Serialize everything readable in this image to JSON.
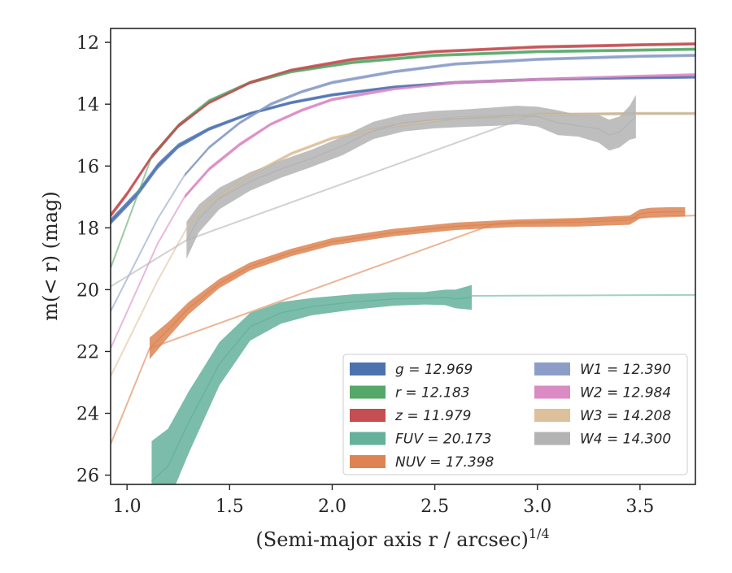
{
  "chart_data": {
    "type": "line",
    "title": "",
    "xlabel": "(Semi-major axis r / arcsec)",
    "xlabel_superscript": "1/4",
    "ylabel": "m(< r) (mag)",
    "xlim": [
      0.92,
      3.77
    ],
    "ylim": [
      26.3,
      11.55
    ],
    "y_inverted": true,
    "grid": false,
    "legend_position": "lower-right",
    "x_ticks": [
      "1.0",
      "1.5",
      "2.0",
      "2.5",
      "3.0",
      "3.5"
    ],
    "y_ticks": [
      "12",
      "14",
      "16",
      "18",
      "20",
      "22",
      "24",
      "26"
    ],
    "series": [
      {
        "name": "g = 12.969",
        "color": "#4c72b0",
        "x": [
          0.92,
          1.05,
          1.15,
          1.25,
          1.4,
          1.6,
          1.8,
          2.0,
          2.3,
          2.6,
          3.0,
          3.4,
          3.77
        ],
        "y": [
          17.8,
          16.9,
          16.0,
          15.35,
          14.8,
          14.3,
          13.95,
          13.7,
          13.45,
          13.3,
          13.2,
          13.15,
          13.12
        ],
        "err": [
          0.1,
          0.1,
          0.1,
          0.08,
          0.06,
          0.05,
          0.05,
          0.05,
          0.05,
          0.05,
          0.05,
          0.05,
          0.05
        ],
        "extrap_x": [],
        "extrap_y": []
      },
      {
        "name": "r = 12.183",
        "color": "#55a868",
        "x": [
          1.12,
          1.25,
          1.4,
          1.6,
          1.8,
          2.1,
          2.5,
          3.0,
          3.5,
          3.77
        ],
        "y": [
          15.7,
          14.7,
          13.9,
          13.3,
          12.95,
          12.65,
          12.42,
          12.3,
          12.25,
          12.22
        ],
        "err": [
          0.08,
          0.07,
          0.06,
          0.05,
          0.05,
          0.05,
          0.05,
          0.05,
          0.05,
          0.05
        ],
        "extrap_x": [
          0.92,
          1.12
        ],
        "extrap_y": [
          19.3,
          15.7
        ]
      },
      {
        "name": "z = 11.979",
        "color": "#c44e52",
        "x": [
          0.92,
          1.0,
          1.12,
          1.25,
          1.4,
          1.6,
          1.8,
          2.1,
          2.5,
          3.0,
          3.5,
          3.77
        ],
        "y": [
          17.6,
          16.9,
          15.7,
          14.7,
          13.95,
          13.3,
          12.9,
          12.55,
          12.3,
          12.15,
          12.08,
          12.05
        ],
        "err": [
          0.08,
          0.08,
          0.07,
          0.06,
          0.05,
          0.05,
          0.05,
          0.05,
          0.05,
          0.05,
          0.05,
          0.05
        ],
        "extrap_x": [],
        "extrap_y": []
      },
      {
        "name": "FUV = 20.173",
        "color": "#64b29b",
        "x": [
          1.12,
          1.2,
          1.3,
          1.45,
          1.6,
          1.75,
          1.9,
          2.1,
          2.3,
          2.45,
          2.55,
          2.6,
          2.68
        ],
        "y": [
          26.2,
          25.7,
          24.3,
          22.4,
          21.2,
          20.75,
          20.55,
          20.4,
          20.3,
          20.28,
          20.25,
          20.3,
          20.25
        ],
        "err": [
          1.3,
          1.2,
          1.0,
          0.7,
          0.45,
          0.35,
          0.28,
          0.25,
          0.22,
          0.2,
          0.25,
          0.3,
          0.4
        ],
        "extrap_x": [
          2.68,
          3.77
        ],
        "extrap_y": [
          20.2,
          20.17
        ]
      },
      {
        "name": "NUV = 17.398",
        "color": "#dd8452",
        "x": [
          1.11,
          1.2,
          1.3,
          1.45,
          1.6,
          1.8,
          2.0,
          2.3,
          2.6,
          2.9,
          3.2,
          3.45,
          3.5,
          3.55,
          3.65,
          3.72
        ],
        "y": [
          21.9,
          21.3,
          20.6,
          19.8,
          19.25,
          18.8,
          18.45,
          18.15,
          17.95,
          17.85,
          17.82,
          17.75,
          17.55,
          17.5,
          17.48,
          17.48
        ],
        "err": [
          0.35,
          0.25,
          0.2,
          0.15,
          0.13,
          0.12,
          0.12,
          0.12,
          0.12,
          0.12,
          0.14,
          0.15,
          0.15,
          0.15,
          0.15,
          0.15
        ],
        "extrap_x": [
          0.92,
          1.11,
          2.8,
          3.77
        ],
        "extrap_y": [
          25.0,
          21.9,
          17.85,
          17.6
        ]
      },
      {
        "name": "W1 = 12.390",
        "color": "#8c9ec8",
        "x": [
          1.28,
          1.4,
          1.55,
          1.7,
          1.85,
          2.0,
          2.3,
          2.6,
          3.0,
          3.5,
          3.77
        ],
        "y": [
          16.3,
          15.4,
          14.6,
          14.0,
          13.6,
          13.3,
          12.95,
          12.7,
          12.55,
          12.45,
          12.42
        ],
        "err": [
          0.05,
          0.05,
          0.05,
          0.05,
          0.05,
          0.05,
          0.05,
          0.05,
          0.05,
          0.05,
          0.05
        ],
        "extrap_x": [
          0.92,
          1.15,
          1.28
        ],
        "extrap_y": [
          20.7,
          17.7,
          16.3
        ]
      },
      {
        "name": "W2 = 12.984",
        "color": "#da8bc3",
        "x": [
          1.28,
          1.4,
          1.55,
          1.7,
          1.85,
          2.0,
          2.3,
          2.6,
          3.0,
          3.5,
          3.77
        ],
        "y": [
          17.0,
          16.1,
          15.3,
          14.65,
          14.2,
          13.85,
          13.5,
          13.3,
          13.2,
          13.1,
          13.05
        ],
        "err": [
          0.06,
          0.06,
          0.06,
          0.05,
          0.05,
          0.05,
          0.05,
          0.05,
          0.05,
          0.05,
          0.05
        ],
        "extrap_x": [
          0.92,
          1.15,
          1.28
        ],
        "extrap_y": [
          21.9,
          18.5,
          17.0
        ]
      },
      {
        "name": "W3 = 14.208",
        "color": "#ddc19a",
        "x": [
          1.3,
          1.4,
          1.6,
          1.8,
          2.0,
          2.3,
          2.6,
          3.0,
          3.5,
          3.77
        ],
        "y": [
          17.9,
          17.2,
          16.3,
          15.6,
          15.1,
          14.7,
          14.45,
          14.35,
          14.3,
          14.3
        ],
        "err": [
          0.06,
          0.06,
          0.05,
          0.05,
          0.05,
          0.05,
          0.05,
          0.05,
          0.05,
          0.05
        ],
        "extrap_x": [
          0.92,
          1.15,
          1.3
        ],
        "extrap_y": [
          22.8,
          19.7,
          17.9
        ]
      },
      {
        "name": "W4 = 14.300",
        "color": "#b3b3b3",
        "x": [
          1.29,
          1.35,
          1.45,
          1.6,
          1.75,
          1.9,
          2.05,
          2.2,
          2.35,
          2.5,
          2.65,
          2.8,
          2.9,
          3.0,
          3.1,
          3.2,
          3.3,
          3.35,
          3.4,
          3.45,
          3.48
        ],
        "y": [
          18.4,
          17.7,
          17.05,
          16.5,
          16.1,
          15.75,
          15.35,
          14.85,
          14.6,
          14.5,
          14.45,
          14.4,
          14.35,
          14.4,
          14.6,
          14.7,
          14.8,
          15.0,
          14.9,
          14.6,
          14.4
        ],
        "err": [
          0.6,
          0.45,
          0.35,
          0.3,
          0.28,
          0.28,
          0.3,
          0.28,
          0.28,
          0.28,
          0.28,
          0.3,
          0.3,
          0.32,
          0.4,
          0.35,
          0.45,
          0.5,
          0.5,
          0.55,
          0.7
        ],
        "extrap_x": [
          0.92,
          1.29,
          3.0,
          3.77
        ],
        "extrap_y": [
          19.9,
          18.4,
          14.3,
          14.3
        ]
      }
    ],
    "legend": {
      "columns": [
        [
          "g = 12.969",
          "r = 12.183",
          "z = 11.979",
          "FUV = 20.173",
          "NUV = 17.398"
        ],
        [
          "W1 = 12.390",
          "W2 = 12.984",
          "W3 = 14.208",
          "W4 = 14.300"
        ]
      ]
    }
  }
}
